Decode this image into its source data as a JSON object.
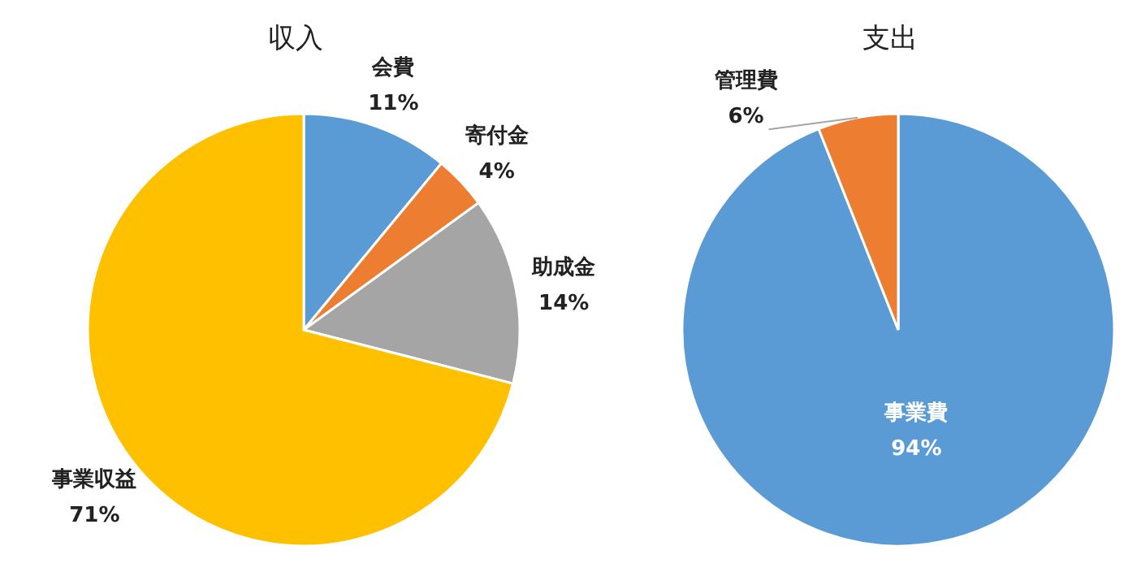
{
  "chart_data": [
    {
      "type": "pie",
      "title": "収入",
      "categories": [
        "会費",
        "寄付金",
        "助成金",
        "事業収益"
      ],
      "values": [
        11,
        4,
        14,
        71
      ],
      "colors": [
        "#5b9bd5",
        "#ed7d31",
        "#a5a5a5",
        "#ffc000"
      ],
      "value_labels": [
        "11%",
        "4%",
        "14%",
        "71%"
      ],
      "legend": false
    },
    {
      "type": "pie",
      "title": "支出",
      "categories": [
        "事業費",
        "管理費"
      ],
      "values": [
        94,
        6
      ],
      "colors": [
        "#5b9bd5",
        "#ed7d31"
      ],
      "value_labels": [
        "94%",
        "6%"
      ],
      "legend": false
    }
  ]
}
